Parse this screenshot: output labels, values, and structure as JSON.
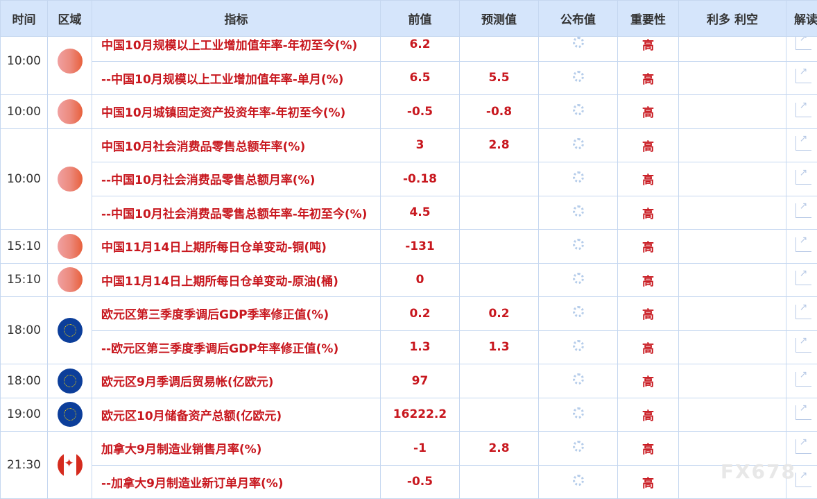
{
  "headers": [
    "时间",
    "区域",
    "指标",
    "前值",
    "预测值",
    "公布值",
    "重要性",
    "利多 利空",
    "解读"
  ],
  "groups": [
    {
      "time": "10:00",
      "flag": "cn",
      "rows": [
        {
          "indicator": "中国10月规模以上工业增加值年率-年初至今(%)",
          "prev": "6.2",
          "forecast": "",
          "importance": "高"
        },
        {
          "indicator": "--中国10月规模以上工业增加值年率-单月(%)",
          "prev": "6.5",
          "forecast": "5.5",
          "importance": "高"
        }
      ]
    },
    {
      "time": "10:00",
      "flag": "cn",
      "rows": [
        {
          "indicator": "中国10月城镇固定资产投资年率-年初至今(%)",
          "prev": "-0.5",
          "forecast": "-0.8",
          "importance": "高"
        }
      ]
    },
    {
      "time": "10:00",
      "flag": "cn",
      "rows": [
        {
          "indicator": "中国10月社会消费品零售总额年率(%)",
          "prev": "3",
          "forecast": "2.8",
          "importance": "高"
        },
        {
          "indicator": "--中国10月社会消费品零售总额月率(%)",
          "prev": "-0.18",
          "forecast": "",
          "importance": "高"
        },
        {
          "indicator": "--中国10月社会消费品零售总额年率-年初至今(%)",
          "prev": "4.5",
          "forecast": "",
          "importance": "高"
        }
      ]
    },
    {
      "time": "15:10",
      "flag": "cn",
      "rows": [
        {
          "indicator": "中国11月14日上期所每日仓单变动-铜(吨)",
          "prev": "-131",
          "forecast": "",
          "importance": "高"
        }
      ]
    },
    {
      "time": "15:10",
      "flag": "cn",
      "rows": [
        {
          "indicator": "中国11月14日上期所每日仓单变动-原油(桶)",
          "prev": "0",
          "forecast": "",
          "importance": "高"
        }
      ]
    },
    {
      "time": "18:00",
      "flag": "eu",
      "rows": [
        {
          "indicator": "欧元区第三季度季调后GDP季率修正值(%)",
          "prev": "0.2",
          "forecast": "0.2",
          "importance": "高"
        },
        {
          "indicator": "--欧元区第三季度季调后GDP年率修正值(%)",
          "prev": "1.3",
          "forecast": "1.3",
          "importance": "高"
        }
      ]
    },
    {
      "time": "18:00",
      "flag": "eu",
      "rows": [
        {
          "indicator": "欧元区9月季调后贸易帐(亿欧元)",
          "prev": "97",
          "forecast": "",
          "importance": "高"
        }
      ]
    },
    {
      "time": "19:00",
      "flag": "eu",
      "rows": [
        {
          "indicator": "欧元区10月储备资产总额(亿欧元)",
          "prev": "16222.2",
          "forecast": "",
          "importance": "高"
        }
      ]
    },
    {
      "time": "21:30",
      "flag": "ca",
      "rows": [
        {
          "indicator": "加拿大9月制造业销售月率(%)",
          "prev": "-1",
          "forecast": "2.8",
          "importance": "高"
        },
        {
          "indicator": "--加拿大9月制造业新订单月率(%)",
          "prev": "-0.5",
          "forecast": "",
          "importance": "高"
        }
      ]
    }
  ],
  "watermark": "FX678",
  "colors": {
    "accent": "#c8171e",
    "header_bg": "#d5e5fb",
    "border": "#c5d7f0"
  }
}
